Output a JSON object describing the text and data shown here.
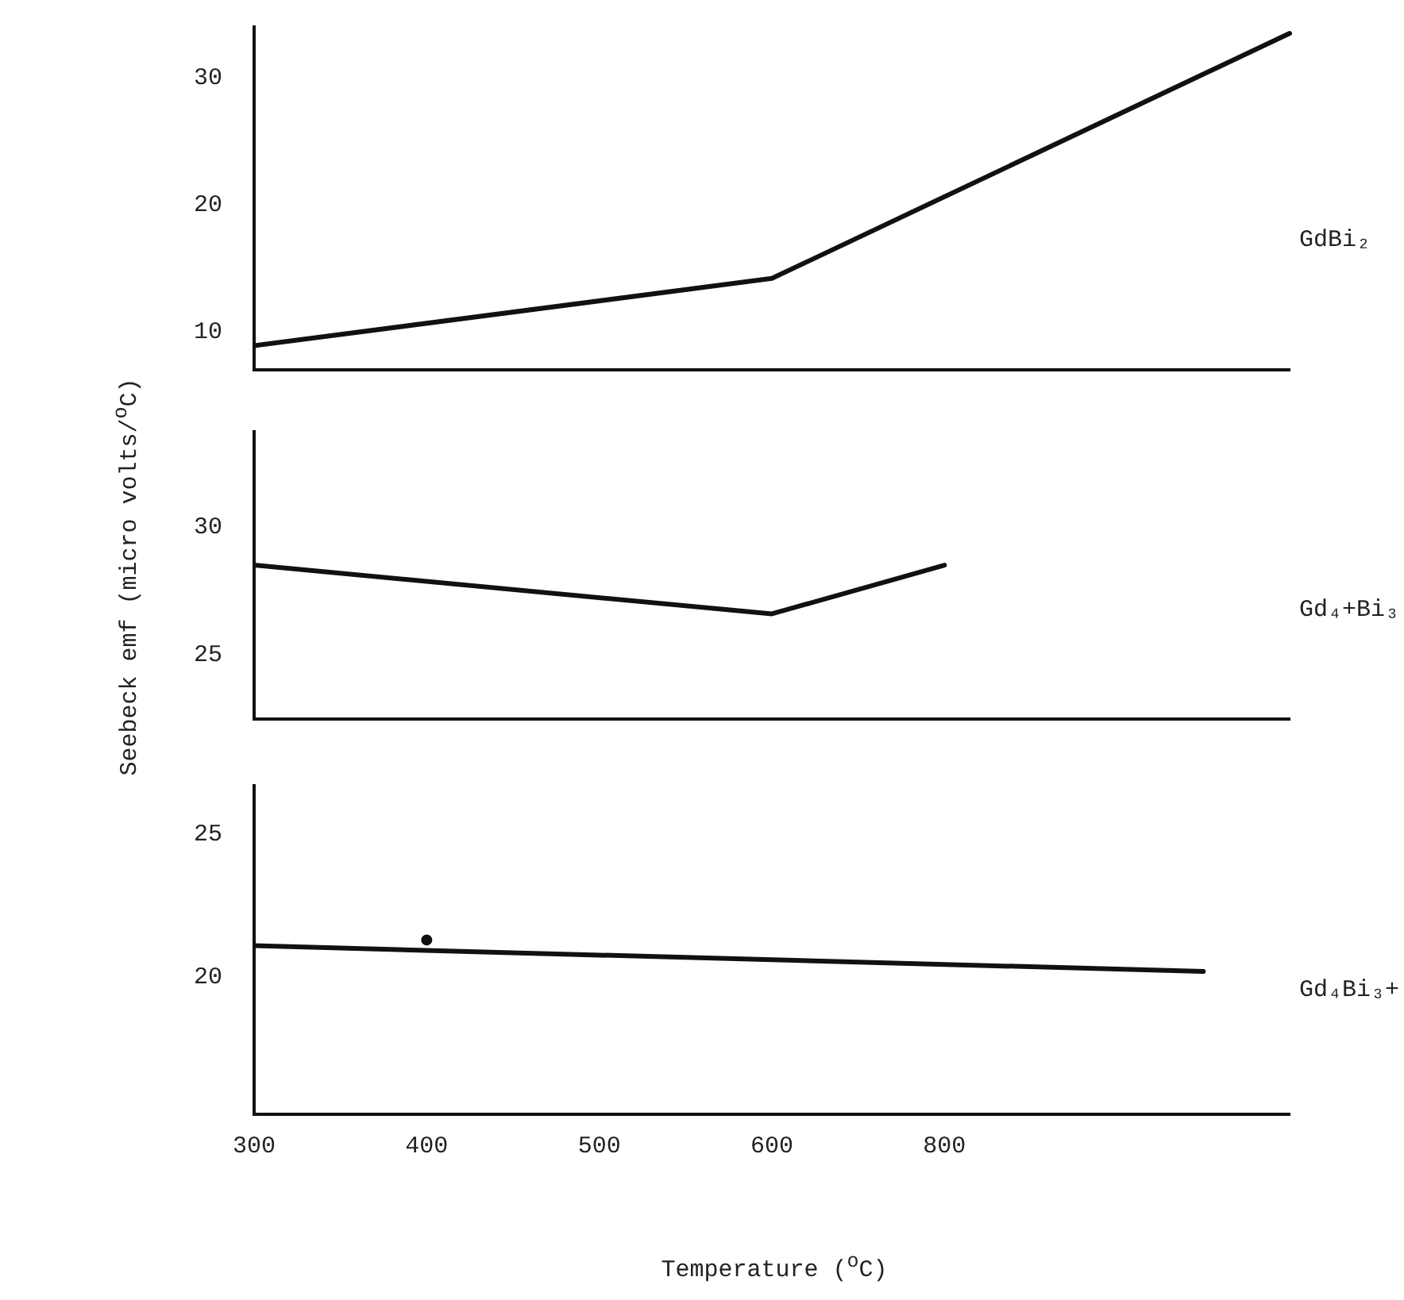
{
  "chart_data": [
    {
      "type": "line",
      "categories": [
        "300",
        null,
        "400",
        null,
        "500",
        null,
        "600",
        null,
        "800",
        null,
        null,
        null,
        null
      ],
      "series": [
        {
          "name": "GdBi₂",
          "color": "#111111",
          "values": [
            8.9,
            null,
            null,
            null,
            null,
            null,
            14.2,
            null,
            null,
            null,
            null,
            null,
            33.5
          ]
        }
      ],
      "ylim": [
        7,
        34
      ],
      "yticks": [
        10,
        20,
        30
      ],
      "grid": false,
      "marker": "none",
      "line_style": "solid",
      "tick_labels": "y"
    },
    {
      "type": "line",
      "categories": [
        "300",
        null,
        "400",
        null,
        "500",
        null,
        "600",
        null,
        "800",
        null,
        null,
        null,
        null
      ],
      "ylabel": "Seebeck emf (micro volts/$^{o}$C)",
      "series": [
        {
          "name": "Gd₄+Bi₃",
          "color": "#111111",
          "values": [
            28.5,
            null,
            null,
            null,
            null,
            null,
            26.6,
            null,
            28.5,
            null,
            null,
            null,
            null
          ]
        }
      ],
      "ylim": [
        22.5,
        33.7
      ],
      "yticks": [
        25,
        30
      ],
      "grid": false,
      "marker": "none",
      "line_style": "solid",
      "tick_labels": "y"
    },
    {
      "type": "line",
      "categories": [
        "300",
        null,
        "400",
        null,
        "500",
        null,
        "600",
        null,
        "800",
        null,
        null,
        null,
        null
      ],
      "xlabel": "Temperature ($^{o}$C)",
      "series": [
        {
          "name": "Gd₄Bi₃+",
          "color": "#111111",
          "values": [
            21.1,
            null,
            null,
            null,
            null,
            null,
            null,
            null,
            null,
            null,
            null,
            20.2,
            null
          ]
        },
        {
          "type": "scatter",
          "color": "#111111",
          "marker": "circle",
          "x": [
            "400"
          ],
          "values": [
            21.3
          ]
        }
      ],
      "ylim": [
        15.2,
        26.7
      ],
      "yticks": [
        20,
        25
      ],
      "grid": false,
      "marker": "none",
      "line_style": "solid"
    }
  ]
}
